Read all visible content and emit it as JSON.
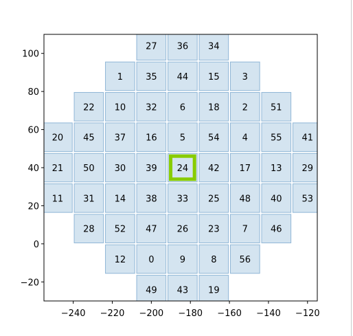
{
  "chart_data": {
    "type": "heatmap",
    "title": "",
    "xlabel": "",
    "ylabel": "",
    "xlim": [
      -255,
      -115
    ],
    "ylim": [
      -30,
      110
    ],
    "grid": false,
    "x_ticks": [
      -240,
      -220,
      -200,
      -180,
      -160,
      -140,
      -120
    ],
    "y_ticks": [
      -20,
      0,
      20,
      40,
      60,
      80,
      100
    ],
    "cell_size": 15,
    "colors": {
      "cell_fill": "#a9c9e1",
      "cell_edge": "#8fb6d6",
      "highlight_edge": "#88cc00"
    },
    "highlight_id": "24",
    "cells": [
      {
        "id": "27",
        "x": -200,
        "y": 104
      },
      {
        "id": "36",
        "x": -184,
        "y": 104
      },
      {
        "id": "34",
        "x": -168,
        "y": 104
      },
      {
        "id": "1",
        "x": -216,
        "y": 88
      },
      {
        "id": "35",
        "x": -200,
        "y": 88
      },
      {
        "id": "44",
        "x": -184,
        "y": 88
      },
      {
        "id": "15",
        "x": -168,
        "y": 88
      },
      {
        "id": "3",
        "x": -152,
        "y": 88
      },
      {
        "id": "22",
        "x": -232,
        "y": 72
      },
      {
        "id": "10",
        "x": -216,
        "y": 72
      },
      {
        "id": "32",
        "x": -200,
        "y": 72
      },
      {
        "id": "6",
        "x": -184,
        "y": 72
      },
      {
        "id": "18",
        "x": -168,
        "y": 72
      },
      {
        "id": "2",
        "x": -152,
        "y": 72
      },
      {
        "id": "51",
        "x": -136,
        "y": 72
      },
      {
        "id": "20",
        "x": -248,
        "y": 56
      },
      {
        "id": "45",
        "x": -232,
        "y": 56
      },
      {
        "id": "37",
        "x": -216,
        "y": 56
      },
      {
        "id": "16",
        "x": -200,
        "y": 56
      },
      {
        "id": "5",
        "x": -184,
        "y": 56
      },
      {
        "id": "54",
        "x": -168,
        "y": 56
      },
      {
        "id": "4",
        "x": -152,
        "y": 56
      },
      {
        "id": "55",
        "x": -136,
        "y": 56
      },
      {
        "id": "41",
        "x": -120,
        "y": 56
      },
      {
        "id": "21",
        "x": -248,
        "y": 40
      },
      {
        "id": "50",
        "x": -232,
        "y": 40
      },
      {
        "id": "30",
        "x": -216,
        "y": 40
      },
      {
        "id": "39",
        "x": -200,
        "y": 40
      },
      {
        "id": "24",
        "x": -184,
        "y": 40
      },
      {
        "id": "42",
        "x": -168,
        "y": 40
      },
      {
        "id": "17",
        "x": -152,
        "y": 40
      },
      {
        "id": "13",
        "x": -136,
        "y": 40
      },
      {
        "id": "29",
        "x": -120,
        "y": 40
      },
      {
        "id": "11",
        "x": -248,
        "y": 24
      },
      {
        "id": "31",
        "x": -232,
        "y": 24
      },
      {
        "id": "14",
        "x": -216,
        "y": 24
      },
      {
        "id": "38",
        "x": -200,
        "y": 24
      },
      {
        "id": "33",
        "x": -184,
        "y": 24
      },
      {
        "id": "25",
        "x": -168,
        "y": 24
      },
      {
        "id": "48",
        "x": -152,
        "y": 24
      },
      {
        "id": "40",
        "x": -136,
        "y": 24
      },
      {
        "id": "53",
        "x": -120,
        "y": 24
      },
      {
        "id": "28",
        "x": -232,
        "y": 8
      },
      {
        "id": "52",
        "x": -216,
        "y": 8
      },
      {
        "id": "47",
        "x": -200,
        "y": 8
      },
      {
        "id": "26",
        "x": -184,
        "y": 8
      },
      {
        "id": "23",
        "x": -168,
        "y": 8
      },
      {
        "id": "7",
        "x": -152,
        "y": 8
      },
      {
        "id": "46",
        "x": -136,
        "y": 8
      },
      {
        "id": "12",
        "x": -216,
        "y": -8
      },
      {
        "id": "0",
        "x": -200,
        "y": -8
      },
      {
        "id": "9",
        "x": -184,
        "y": -8
      },
      {
        "id": "8",
        "x": -168,
        "y": -8
      },
      {
        "id": "56",
        "x": -152,
        "y": -8
      },
      {
        "id": "49",
        "x": -200,
        "y": -24
      },
      {
        "id": "43",
        "x": -184,
        "y": -24
      },
      {
        "id": "19",
        "x": -168,
        "y": -24
      }
    ]
  }
}
